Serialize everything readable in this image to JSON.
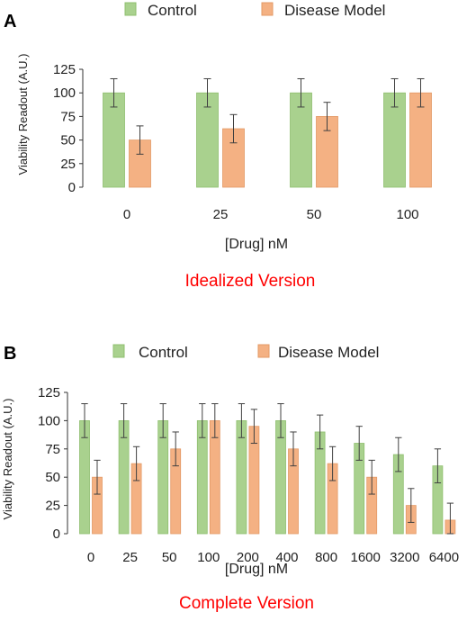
{
  "colors": {
    "control": "#a9d18e",
    "disease": "#f4b183",
    "caption": "#ff0000",
    "errorbar": "#404040",
    "axis": "#333333"
  },
  "chart_data": [
    {
      "type": "bar",
      "panel_label": "A",
      "caption": "Idealized Version",
      "categories": [
        "0",
        "25",
        "50",
        "100"
      ],
      "series": [
        {
          "name": "Control",
          "values": [
            100,
            100,
            100,
            100
          ],
          "errors": [
            15,
            15,
            15,
            15
          ]
        },
        {
          "name": "Disease Model",
          "values": [
            50,
            62,
            75,
            100
          ],
          "errors": [
            15,
            15,
            15,
            15
          ]
        }
      ],
      "xlabel": "[Drug] nM",
      "ylabel": "Viability Readout (A.U.)",
      "ylim": [
        0,
        125
      ],
      "yticks": [
        "0",
        "25",
        "50",
        "75",
        "100",
        "125"
      ],
      "legend": "top-center",
      "grid": false
    },
    {
      "type": "bar",
      "panel_label": "B",
      "caption": "Complete Version",
      "categories": [
        "0",
        "25",
        "50",
        "100",
        "200",
        "400",
        "800",
        "1600",
        "3200",
        "6400"
      ],
      "series": [
        {
          "name": "Control",
          "values": [
            100,
            100,
            100,
            100,
            100,
            100,
            90,
            80,
            70,
            60
          ],
          "errors": [
            15,
            15,
            15,
            15,
            15,
            15,
            15,
            15,
            15,
            15
          ]
        },
        {
          "name": "Disease Model",
          "values": [
            50,
            62,
            75,
            100,
            95,
            75,
            62,
            50,
            25,
            12
          ],
          "errors": [
            15,
            15,
            15,
            15,
            15,
            15,
            15,
            15,
            15,
            15
          ]
        }
      ],
      "xlabel": "[Drug] nM",
      "ylabel": "Viability Readout (A.U.)",
      "ylim": [
        0,
        125
      ],
      "yticks": [
        "0",
        "25",
        "50",
        "75",
        "100",
        "125"
      ],
      "legend": "top-center",
      "grid": false
    }
  ]
}
